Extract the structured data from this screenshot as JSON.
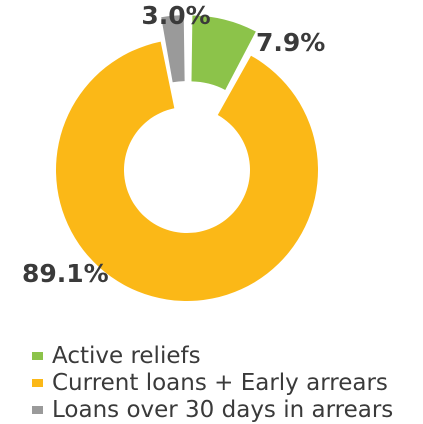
{
  "chart_data": {
    "type": "pie",
    "variant": "donut",
    "slices": [
      {
        "label": "Active reliefs",
        "value": 7.9,
        "display": "7.9%",
        "color": "#8cc34a"
      },
      {
        "label": "Current loans + Early arrears",
        "value": 89.1,
        "display": "89.1%",
        "color": "#fbb817"
      },
      {
        "label": "Loans over 30 days in arrears",
        "value": 3.0,
        "display": "3.0%",
        "color": "#9a9a9a"
      }
    ],
    "legend_placement": "bottom"
  }
}
